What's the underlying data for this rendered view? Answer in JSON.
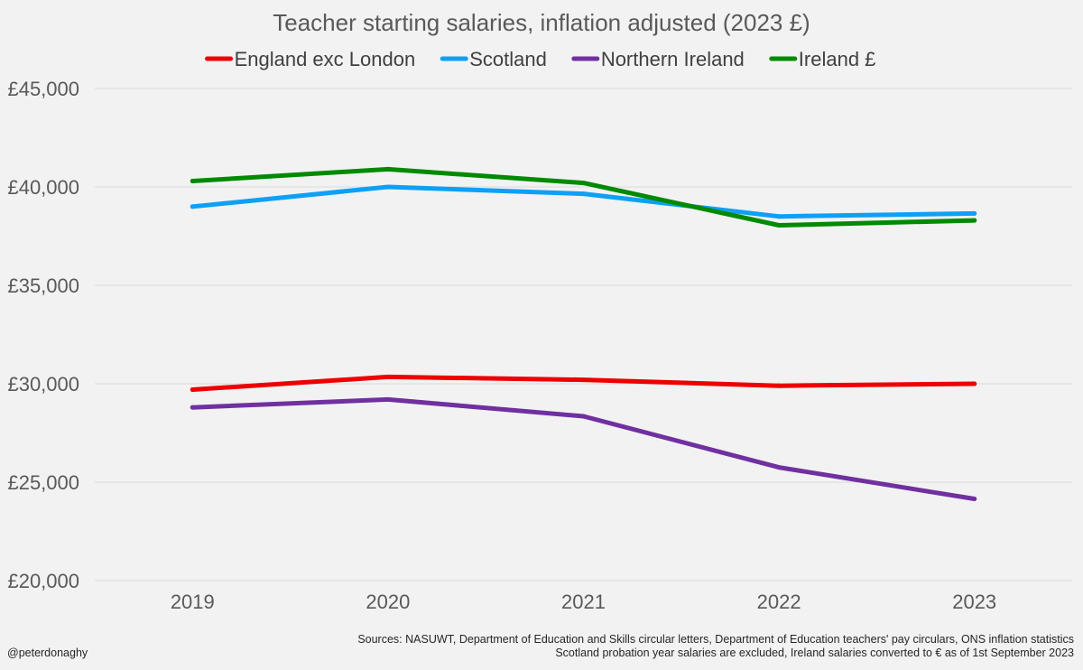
{
  "chart_data": {
    "type": "line",
    "title": "Teacher starting salaries, inflation adjusted (2023 £)",
    "categories": [
      "2019",
      "2020",
      "2021",
      "2022",
      "2023"
    ],
    "ylim": [
      20000,
      45000
    ],
    "yticks": [
      20000,
      25000,
      30000,
      35000,
      40000,
      45000
    ],
    "ytick_labels": [
      "£20,000",
      "£25,000",
      "£30,000",
      "£35,000",
      "£40,000",
      "£45,000"
    ],
    "xlabel": "",
    "ylabel": "",
    "grid": true,
    "legend_position": "top",
    "series": [
      {
        "name": "England exc London",
        "color": "#ee0000",
        "values": [
          29700,
          30350,
          30200,
          29900,
          30000
        ]
      },
      {
        "name": "Scotland",
        "color": "#0ea0f5",
        "values": [
          39000,
          40000,
          39650,
          38500,
          38650
        ]
      },
      {
        "name": "Northern Ireland",
        "color": "#7030a0",
        "values": [
          28800,
          29200,
          28350,
          25750,
          24150
        ]
      },
      {
        "name": "Ireland £",
        "color": "#008a00",
        "values": [
          40300,
          40900,
          40200,
          38050,
          38300
        ]
      }
    ]
  },
  "footer": {
    "sources": "Sources: NASUWT, Department of Education and Skills circular letters, Department of Education teachers' pay circulars, ONS inflation statistics",
    "note": "Scotland probation year salaries are excluded, Ireland salaries converted to € as of 1st September 2023",
    "credit": "@peterdonaghy"
  }
}
